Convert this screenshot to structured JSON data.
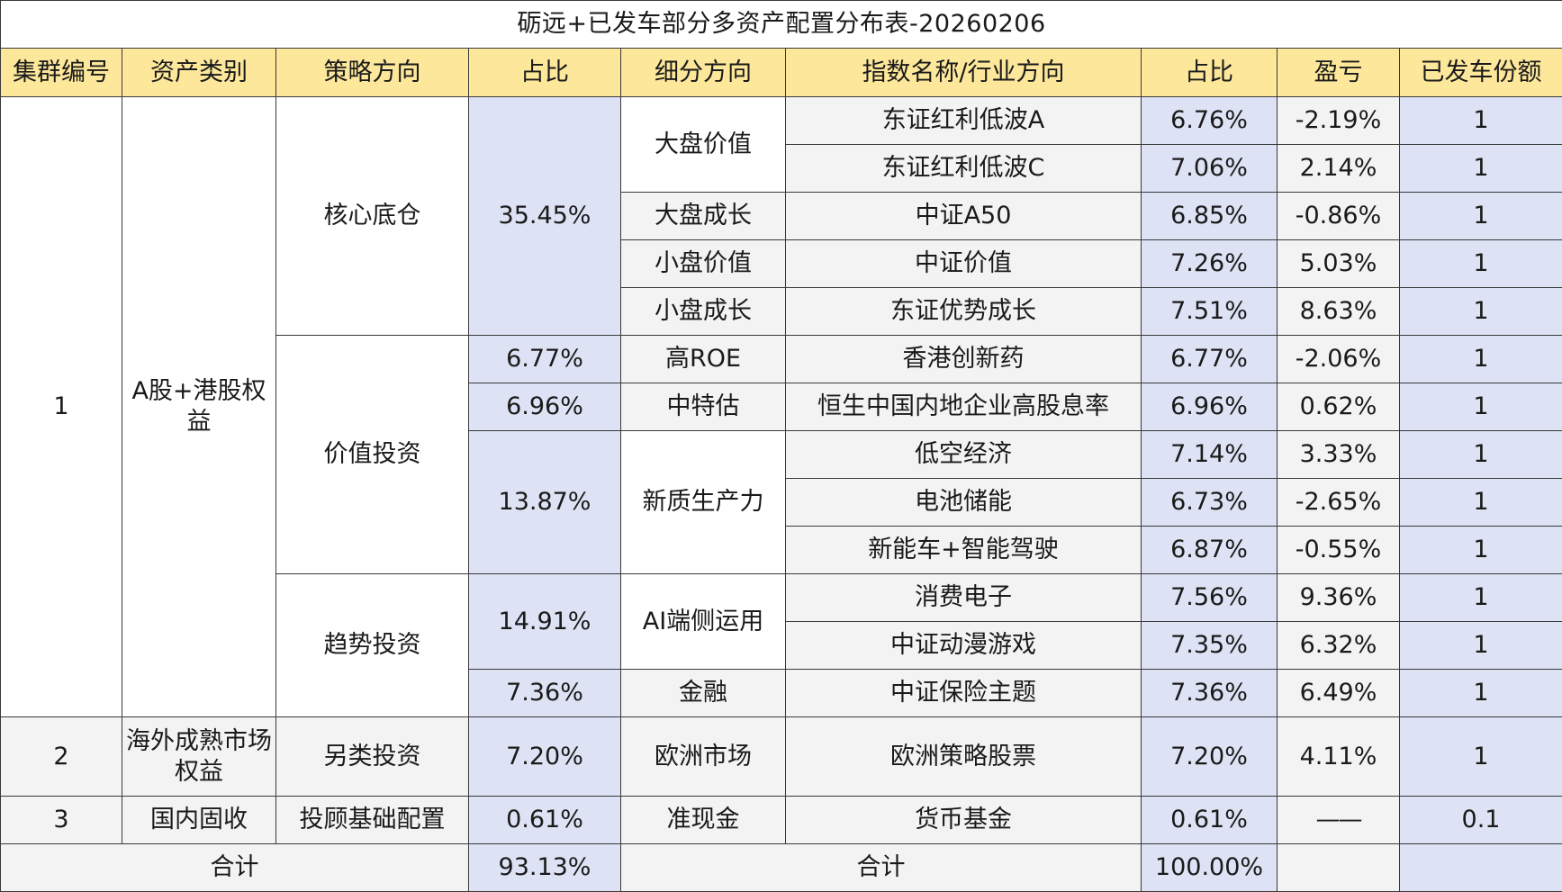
{
  "title": "砺远+已发车部分多资产配置分布表-20260206",
  "headers": {
    "cluster": "集群编号",
    "asset_class": "资产类别",
    "strategy": "策略方向",
    "strategy_share": "占比",
    "sub_direction": "细分方向",
    "index_name": "指数名称/行业方向",
    "index_share": "占比",
    "pnl": "盈亏",
    "units": "已发车份额"
  },
  "clusters": [
    {
      "id": "1",
      "asset_class": "A股+港股权益"
    },
    {
      "id": "2",
      "asset_class": "海外成熟市场权益"
    },
    {
      "id": "3",
      "asset_class": "国内固收"
    }
  ],
  "strategies": [
    {
      "name": "核心底仓"
    },
    {
      "name": "价值投资"
    },
    {
      "name": "趋势投资"
    },
    {
      "name": "另类投资"
    },
    {
      "name": "投顾基础配置"
    }
  ],
  "strategy_shares": [
    "35.45%",
    "6.77%",
    "6.96%",
    "13.87%",
    "14.91%",
    "7.36%",
    "7.20%",
    "0.61%"
  ],
  "sub_directions": [
    "大盘价值",
    "大盘成长",
    "小盘价值",
    "小盘成长",
    "高ROE",
    "中特估",
    "新质生产力",
    "AI端侧运用",
    "金融",
    "欧洲市场",
    "准现金"
  ],
  "rows": [
    {
      "index": "东证红利低波A",
      "share": "6.76%",
      "pnl": "-2.19%",
      "units": "1"
    },
    {
      "index": "东证红利低波C",
      "share": "7.06%",
      "pnl": "2.14%",
      "units": "1"
    },
    {
      "index": "中证A50",
      "share": "6.85%",
      "pnl": "-0.86%",
      "units": "1"
    },
    {
      "index": "中证价值",
      "share": "7.26%",
      "pnl": "5.03%",
      "units": "1"
    },
    {
      "index": "东证优势成长",
      "share": "7.51%",
      "pnl": "8.63%",
      "units": "1"
    },
    {
      "index": "香港创新药",
      "share": "6.77%",
      "pnl": "-2.06%",
      "units": "1"
    },
    {
      "index": "恒生中国内地企业高股息率",
      "share": "6.96%",
      "pnl": "0.62%",
      "units": "1"
    },
    {
      "index": "低空经济",
      "share": "7.14%",
      "pnl": "3.33%",
      "units": "1"
    },
    {
      "index": "电池储能",
      "share": "6.73%",
      "pnl": "-2.65%",
      "units": "1"
    },
    {
      "index": "新能车+智能驾驶",
      "share": "6.87%",
      "pnl": "-0.55%",
      "units": "1"
    },
    {
      "index": "消费电子",
      "share": "7.56%",
      "pnl": "9.36%",
      "units": "1"
    },
    {
      "index": "中证动漫游戏",
      "share": "7.35%",
      "pnl": "6.32%",
      "units": "1"
    },
    {
      "index": "中证保险主题",
      "share": "7.36%",
      "pnl": "6.49%",
      "units": "1"
    },
    {
      "index": "欧洲策略股票",
      "share": "7.20%",
      "pnl": "4.11%",
      "units": "1"
    },
    {
      "index": "货币基金",
      "share": "0.61%",
      "pnl": "——",
      "units": "0.1"
    }
  ],
  "totals": {
    "left_label": "合计",
    "strategy_total": "93.13%",
    "right_label": "合计",
    "index_total": "100.00%"
  },
  "colors": {
    "header_bg": "#fce79a",
    "share_bg": "#dde2f4",
    "row_bg": "#f3f3f3",
    "border": "#3a3a3a"
  }
}
